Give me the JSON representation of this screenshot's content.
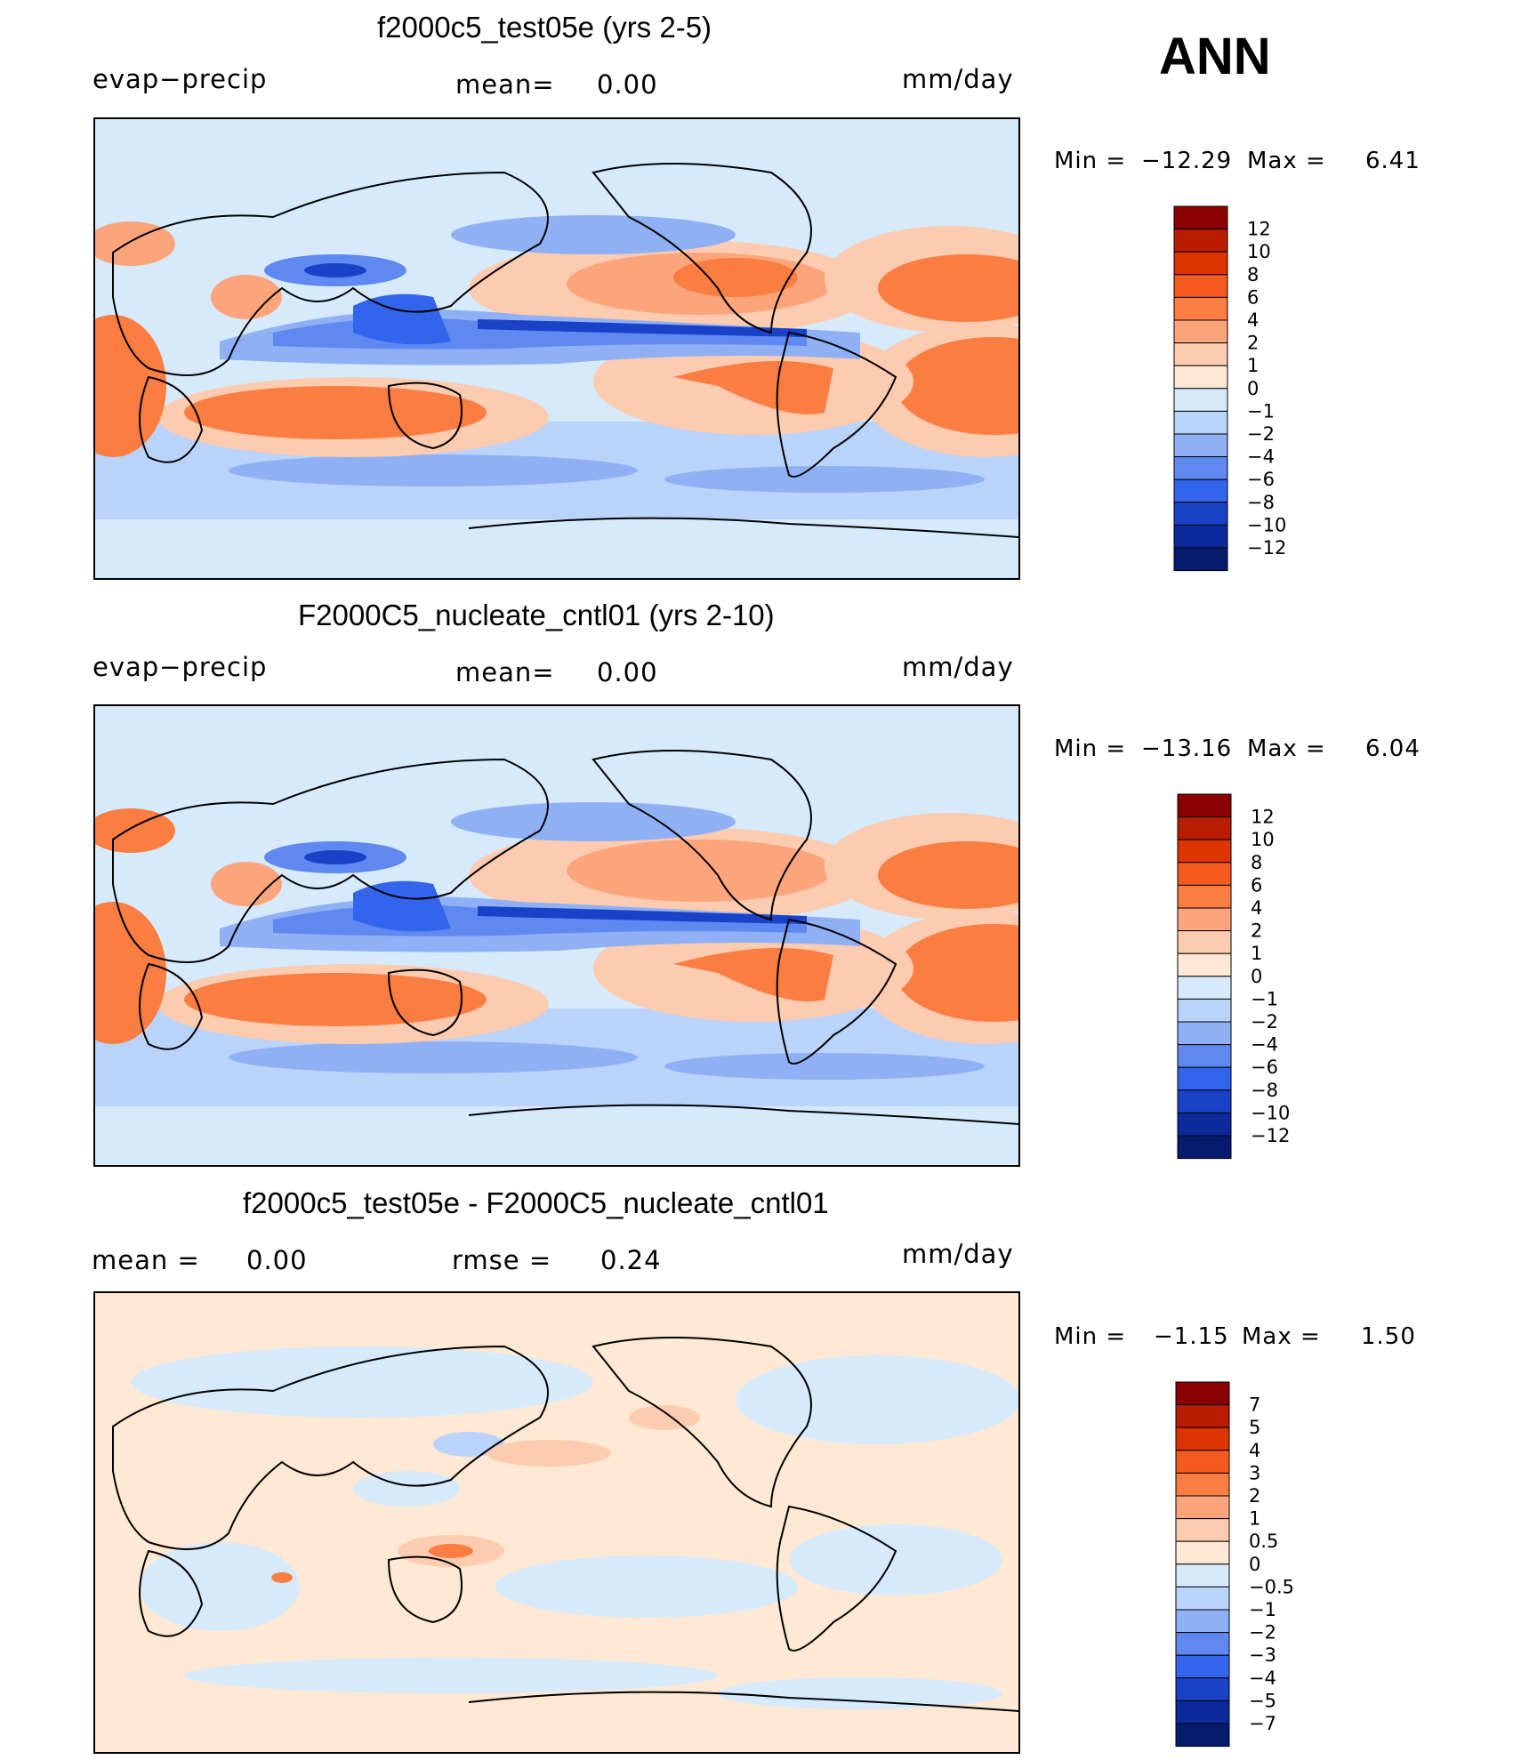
{
  "chart_data": [
    {
      "type": "heatmap",
      "title": "f2000c5_test05e (yrs 2-5)",
      "left_label": "evap−precip",
      "mean_label": "mean=",
      "mean_value": "0.00",
      "units": "mm/day",
      "min_label": "Min  =",
      "min_value": "−12.29",
      "max_label": "Max  =",
      "max_value": "6.41",
      "levels": [
        "12",
        "10",
        "8",
        "6",
        "4",
        "2",
        "1",
        "0",
        "−1",
        "−2",
        "−4",
        "−6",
        "−8",
        "−10",
        "−12"
      ],
      "colors": [
        "#8b0000",
        "#b81d00",
        "#de3400",
        "#f45a1e",
        "#fa7d42",
        "#fca57c",
        "#fdcbb0",
        "#ffe8d4",
        "#d6eafc",
        "#b9d3fa",
        "#8fb0f5",
        "#5f88f0",
        "#3264ec",
        "#1942c8",
        "#0c2a9a",
        "#061a6e"
      ]
    },
    {
      "type": "heatmap",
      "title": "F2000C5_nucleate_cntl01 (yrs 2-10)",
      "left_label": "evap−precip",
      "mean_label": "mean=",
      "mean_value": "0.00",
      "units": "mm/day",
      "min_label": "Min  =",
      "min_value": "−13.16",
      "max_label": "Max  =",
      "max_value": "6.04",
      "levels": [
        "12",
        "10",
        "8",
        "6",
        "4",
        "2",
        "1",
        "0",
        "−1",
        "−2",
        "−4",
        "−6",
        "−8",
        "−10",
        "−12"
      ],
      "colors": [
        "#8b0000",
        "#b81d00",
        "#de3400",
        "#f45a1e",
        "#fa7d42",
        "#fca57c",
        "#fdcbb0",
        "#ffe8d4",
        "#d6eafc",
        "#b9d3fa",
        "#8fb0f5",
        "#5f88f0",
        "#3264ec",
        "#1942c8",
        "#0c2a9a",
        "#061a6e"
      ]
    },
    {
      "type": "heatmap",
      "title": "f2000c5_test05e - F2000C5_nucleate_cntl01",
      "mean_label": "mean  =",
      "mean_value": "0.00",
      "rmse_label": "rmse  =",
      "rmse_value": "0.24",
      "units": "mm/day",
      "min_label": "Min  =",
      "min_value": "−1.15",
      "max_label": "Max  =",
      "max_value": "1.50",
      "levels": [
        "7",
        "5",
        "4",
        "3",
        "2",
        "1",
        "0.5",
        "0",
        "−0.5",
        "−1",
        "−2",
        "−3",
        "−4",
        "−5",
        "−7"
      ],
      "colors": [
        "#8b0000",
        "#b81d00",
        "#de3400",
        "#f45a1e",
        "#fa7d42",
        "#fca57c",
        "#fdcbb0",
        "#ffe8d4",
        "#d6eafc",
        "#b9d3fa",
        "#8fb0f5",
        "#5f88f0",
        "#3264ec",
        "#1942c8",
        "#0c2a9a",
        "#061a6e"
      ]
    }
  ],
  "season": "ANN"
}
